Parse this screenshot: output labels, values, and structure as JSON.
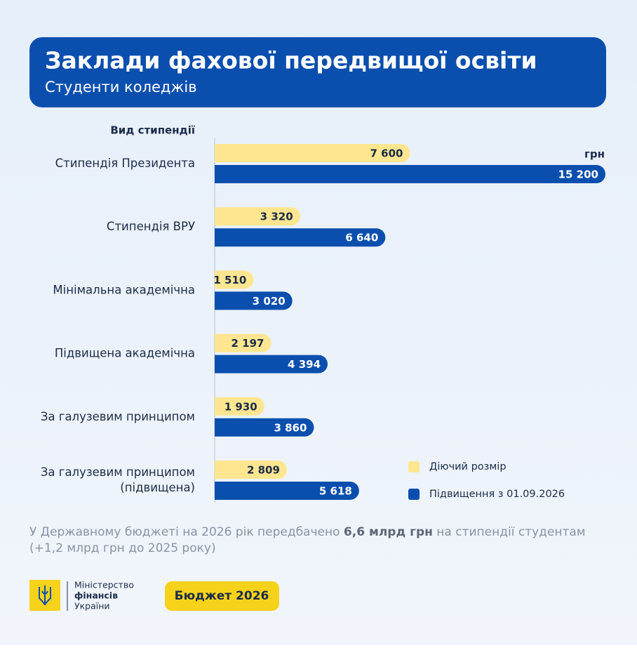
{
  "header": {
    "title": "Заклади фахової передвищої освіти",
    "subtitle": "Студенти коледжів"
  },
  "chart_data": {
    "type": "bar",
    "orientation": "horizontal",
    "category_title": "Вид стипендії",
    "unit": "грн",
    "categories": [
      "Стипендія Президента",
      "Стипендія ВРУ",
      "Мінімальна академічна",
      "Підвищена академічна",
      "За галузевим принципом",
      "За галузевим принципом\n(підвищена)"
    ],
    "series": [
      {
        "name": "Діючий розмір",
        "color": "#fde68f",
        "values": [
          7600,
          3320,
          1510,
          2197,
          1930,
          2809
        ],
        "value_labels": [
          "7 600",
          "3 320",
          "1 510",
          "2 197",
          "1 930",
          "2 809"
        ]
      },
      {
        "name": "Підвищення з 01.09.2026",
        "color": "#0b4fae",
        "values": [
          15200,
          6640,
          3020,
          4394,
          3860,
          5618
        ],
        "value_labels": [
          "15 200",
          "6 640",
          "3 020",
          "4 394",
          "3 860",
          "5 618"
        ]
      }
    ],
    "legend": "bottom-right"
  },
  "note": {
    "start": "У Державному бюджеті на 2026 рік передбачено ",
    "highlight": "6,6 млрд грн",
    "end": " на стипендії студентам",
    "line2": "(+1,2 млрд грн до 2025 року)"
  },
  "footer": {
    "ministry": [
      "Міністерство",
      "фінансів",
      "України"
    ],
    "badge": "Бюджет 2026"
  }
}
